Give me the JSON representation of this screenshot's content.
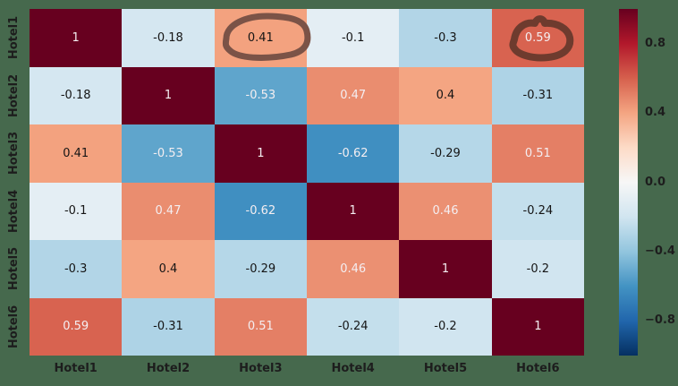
{
  "figure": {
    "background": "#46694d",
    "tick_label_color": "#1d1d1d",
    "cell_dark_text": "#151515",
    "cell_light_text": "#f4eef1"
  },
  "chart_data": {
    "type": "heatmap",
    "title": "",
    "xlabel": "",
    "ylabel": "",
    "x_categories": [
      "Hotel1",
      "Hotel2",
      "Hotel3",
      "Hotel4",
      "Hotel5",
      "Hotel6"
    ],
    "y_categories": [
      "Hotel1",
      "Hotel2",
      "Hotel3",
      "Hotel4",
      "Hotel5",
      "Hotel6"
    ],
    "values": [
      [
        1,
        -0.18,
        0.41,
        -0.1,
        -0.3,
        0.59
      ],
      [
        -0.18,
        1,
        -0.53,
        0.47,
        0.4,
        -0.31
      ],
      [
        0.41,
        -0.53,
        1,
        -0.62,
        -0.29,
        0.51
      ],
      [
        -0.1,
        0.47,
        -0.62,
        1,
        0.46,
        -0.24
      ],
      [
        -0.3,
        0.4,
        -0.29,
        0.46,
        1,
        -0.2
      ],
      [
        0.59,
        -0.31,
        0.51,
        -0.24,
        -0.2,
        1
      ]
    ],
    "cell_labels": [
      [
        "1",
        "-0.18",
        "0.41",
        "-0.1",
        "-0.3",
        "0.59"
      ],
      [
        "-0.18",
        "1",
        "-0.53",
        "0.47",
        "0.4",
        "-0.31"
      ],
      [
        "0.41",
        "-0.53",
        "1",
        "-0.62",
        "-0.29",
        "0.51"
      ],
      [
        "-0.1",
        "0.47",
        "-0.62",
        "1",
        "0.46",
        "-0.24"
      ],
      [
        "-0.3",
        "0.4",
        "-0.29",
        "0.46",
        "1",
        "-0.2"
      ],
      [
        "0.59",
        "-0.31",
        "0.51",
        "-0.24",
        "-0.2",
        "1"
      ]
    ],
    "vmin": -1,
    "vmax": 1,
    "grid": false,
    "legend_position": "right",
    "colormap": {
      "name": "RdBu_r",
      "stops": [
        {
          "value": -1.0,
          "color": "#053061"
        },
        {
          "value": -0.8,
          "color": "#2166ac"
        },
        {
          "value": -0.6,
          "color": "#4393c3"
        },
        {
          "value": -0.4,
          "color": "#92c5de"
        },
        {
          "value": -0.2,
          "color": "#d1e5f0"
        },
        {
          "value": 0.0,
          "color": "#f7f7f7"
        },
        {
          "value": 0.2,
          "color": "#fddbc7"
        },
        {
          "value": 0.4,
          "color": "#f4a582"
        },
        {
          "value": 0.6,
          "color": "#d6604d"
        },
        {
          "value": 0.8,
          "color": "#b2182b"
        },
        {
          "value": 1.0,
          "color": "#67001f"
        }
      ]
    },
    "colorbar_ticks": [
      {
        "label": "0.8",
        "value": 0.8
      },
      {
        "label": "0.4",
        "value": 0.4
      },
      {
        "label": "0.0",
        "value": 0.0
      },
      {
        "label": "−0.4",
        "value": -0.4
      },
      {
        "label": "−0.8",
        "value": -0.8
      }
    ],
    "annotations": [
      {
        "name": "hand-drawn-circle",
        "around_label": "0.41",
        "cell_row": 0,
        "cell_col": 2,
        "color": "#7b5347",
        "stroke_width": 7
      },
      {
        "name": "hand-drawn-circle",
        "around_label": "0.59",
        "cell_row": 0,
        "cell_col": 5,
        "color": "#6e3b2e",
        "stroke_width": 8
      }
    ]
  }
}
